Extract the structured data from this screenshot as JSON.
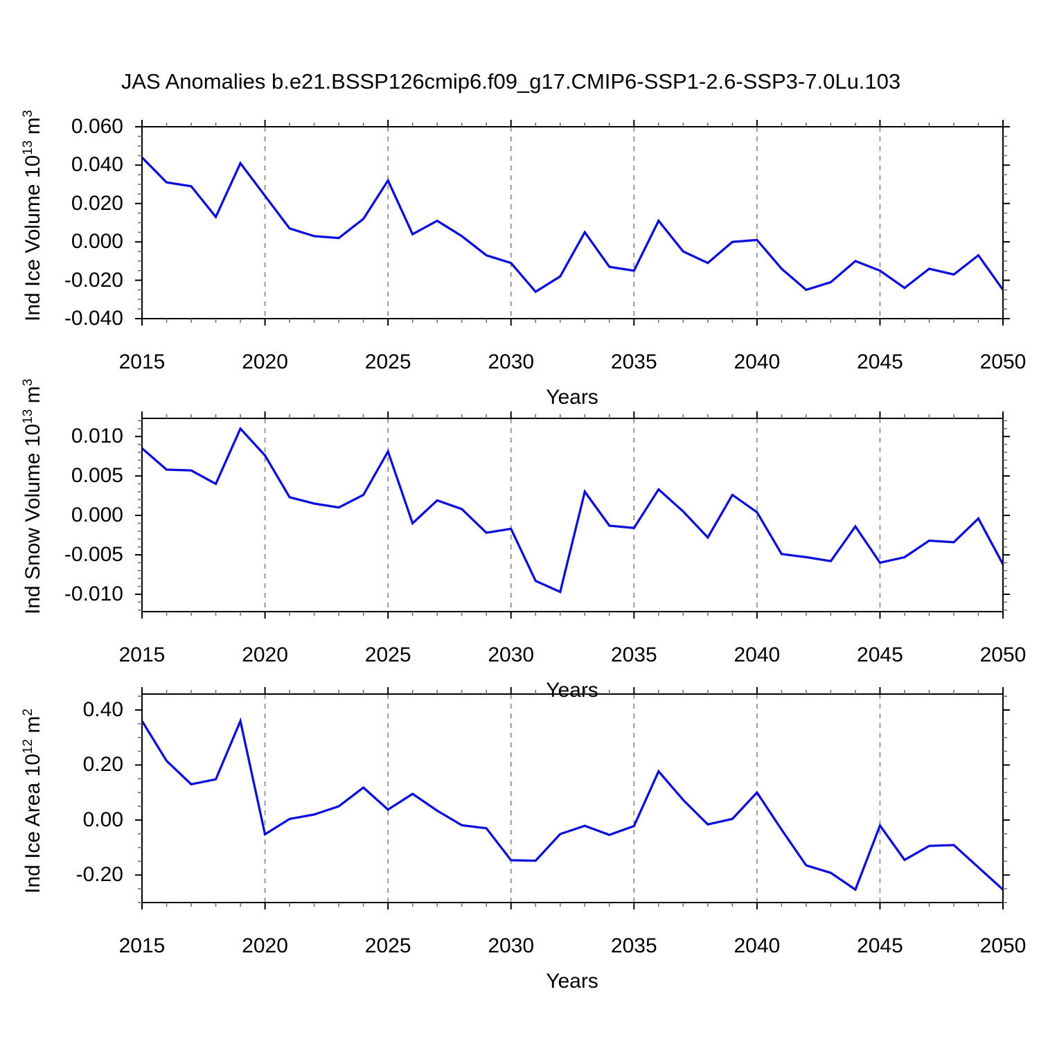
{
  "title": "JAS Anomalies b.e21.BSSP126cmip6.f09_g17.CMIP6-SSP1-2.6-SSP3-7.0Lu.103",
  "colors": {
    "line": "#0d0ddd",
    "grid": "#7d7d7d",
    "frame": "#000000",
    "minor_tick": "#6e6e6e",
    "text": "#000000",
    "background": "#ffffff"
  },
  "years": [
    2015,
    2016,
    2017,
    2018,
    2019,
    2020,
    2021,
    2022,
    2023,
    2024,
    2025,
    2026,
    2027,
    2028,
    2029,
    2030,
    2031,
    2032,
    2033,
    2034,
    2035,
    2036,
    2037,
    2038,
    2039,
    2040,
    2041,
    2042,
    2043,
    2044,
    2045,
    2046,
    2047,
    2048,
    2049,
    2050
  ],
  "chart_data": [
    {
      "type": "line",
      "name": "ind-ice-volume",
      "ylabel_parts": [
        {
          "text": "Ind Ice Volume 10"
        },
        {
          "text": "13",
          "sup": true
        },
        {
          "text": " m"
        },
        {
          "text": "3",
          "sup": true
        }
      ],
      "xlabel": "Years",
      "xlim": [
        2015,
        2050
      ],
      "xticks_major": [
        2015,
        2020,
        2025,
        2030,
        2035,
        2040,
        2045,
        2050
      ],
      "xtick_labels": [
        "2015",
        "2020",
        "2025",
        "2030",
        "2035",
        "2040",
        "2045",
        "2050"
      ],
      "x_minor_step": 1,
      "gridlines_x": [
        2020,
        2025,
        2030,
        2035,
        2040,
        2045
      ],
      "grid_on": true,
      "legend": "none",
      "ylim": [
        -0.04,
        0.06
      ],
      "yticks_major": [
        0.06,
        0.04,
        0.02,
        0.0,
        -0.02,
        -0.04
      ],
      "ytick_labels": [
        "0.060",
        "0.040",
        "0.020",
        "0.000",
        "-0.020",
        "-0.040"
      ],
      "y_minor_step": 0.005,
      "values": [
        0.044,
        0.031,
        0.029,
        0.013,
        0.041,
        0.024,
        0.007,
        0.003,
        0.002,
        0.012,
        0.032,
        0.004,
        0.011,
        0.003,
        -0.007,
        -0.011,
        -0.026,
        -0.018,
        0.005,
        -0.013,
        -0.015,
        0.011,
        -0.005,
        -0.011,
        0.0,
        0.001,
        -0.014,
        -0.025,
        -0.021,
        -0.01,
        -0.015,
        -0.024,
        -0.014,
        -0.017,
        -0.007,
        -0.025
      ]
    },
    {
      "type": "line",
      "name": "ind-snow-volume",
      "ylabel_parts": [
        {
          "text": "Ind Snow Volume 10"
        },
        {
          "text": "13",
          "sup": true
        },
        {
          "text": " m"
        },
        {
          "text": "3",
          "sup": true
        }
      ],
      "xlabel": "Years",
      "xlim": [
        2015,
        2050
      ],
      "xticks_major": [
        2015,
        2020,
        2025,
        2030,
        2035,
        2040,
        2045,
        2050
      ],
      "xtick_labels": [
        "2015",
        "2020",
        "2025",
        "2030",
        "2035",
        "2040",
        "2045",
        "2050"
      ],
      "x_minor_step": 1,
      "gridlines_x": [
        2020,
        2025,
        2030,
        2035,
        2040,
        2045
      ],
      "grid_on": true,
      "legend": "none",
      "ylim": [
        -0.0122,
        0.0123
      ],
      "yticks_major": [
        0.01,
        0.005,
        0.0,
        -0.005,
        -0.01
      ],
      "ytick_labels": [
        "0.010",
        "0.005",
        "0.000",
        "-0.005",
        "-0.010"
      ],
      "y_minor_step": 0.001,
      "values": [
        0.0085,
        0.0058,
        0.0057,
        0.004,
        0.011,
        0.0076,
        0.0023,
        0.0015,
        0.001,
        0.0026,
        0.0081,
        -0.001,
        0.0019,
        0.0008,
        -0.0022,
        -0.0017,
        -0.0083,
        -0.0097,
        0.003,
        -0.0013,
        -0.0016,
        0.0033,
        0.0005,
        -0.0028,
        0.0026,
        0.0004,
        -0.0049,
        -0.0053,
        -0.0058,
        -0.0014,
        -0.006,
        -0.0053,
        -0.0032,
        -0.0034,
        -0.0004,
        -0.0062
      ]
    },
    {
      "type": "line",
      "name": "ind-ice-area",
      "ylabel_parts": [
        {
          "text": "Ind Ice Area 10"
        },
        {
          "text": "12",
          "sup": true
        },
        {
          "text": " m"
        },
        {
          "text": "2",
          "sup": true
        }
      ],
      "xlabel": "Years",
      "xlim": [
        2015,
        2050
      ],
      "xticks_major": [
        2015,
        2020,
        2025,
        2030,
        2035,
        2040,
        2045,
        2050
      ],
      "xtick_labels": [
        "2015",
        "2020",
        "2025",
        "2030",
        "2035",
        "2040",
        "2045",
        "2050"
      ],
      "x_minor_step": 1,
      "gridlines_x": [
        2020,
        2025,
        2030,
        2035,
        2040,
        2045
      ],
      "grid_on": true,
      "legend": "none",
      "ylim": [
        -0.3,
        0.458
      ],
      "yticks_major": [
        0.4,
        0.2,
        0.0,
        -0.2
      ],
      "ytick_labels": [
        "0.40",
        "0.20",
        "0.00",
        "-0.20"
      ],
      "y_minor_step": 0.05,
      "values": [
        0.36,
        0.215,
        0.13,
        0.148,
        0.36,
        -0.052,
        0.004,
        0.02,
        0.05,
        0.118,
        0.038,
        0.095,
        0.034,
        -0.019,
        -0.03,
        -0.146,
        -0.148,
        -0.051,
        -0.021,
        -0.054,
        -0.022,
        0.177,
        0.073,
        -0.016,
        0.004,
        0.1,
        -0.035,
        -0.165,
        -0.192,
        -0.253,
        -0.02,
        -0.145,
        -0.094,
        -0.091,
        -0.172,
        -0.253
      ]
    }
  ]
}
